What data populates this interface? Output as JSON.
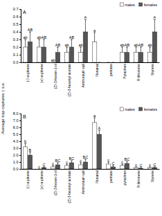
{
  "chart_data": [
    {
      "type": "bar",
      "title": "A",
      "y_label": "Average trap captures ± s.e.",
      "categories": [
        "(-)-α-pinene",
        "(+)-α-pinene",
        "(Z)-3-hexen-1-ol",
        "(Z)-3-hexenyl acetate",
        "Ammonium salt",
        "Nonanal",
        "pentane",
        "Pyrazines",
        "R-limonene",
        "Styrene"
      ],
      "series": [
        {
          "name": "males",
          "color": "#ffffff",
          "values": [
            0.2,
            0.2,
            0,
            0.13,
            0.13,
            0.27,
            0,
            0.13,
            0.13,
            0.13
          ],
          "errors": [
            0.1,
            0.1,
            0,
            0.07,
            0.07,
            0.12,
            0,
            0.07,
            0.07,
            0.07
          ],
          "letters": [
            "ab",
            "ab",
            "ab",
            "ab",
            "ab",
            "a",
            null,
            "ab",
            "ab",
            "ab"
          ]
        },
        {
          "name": "females",
          "color": "#555555",
          "values": [
            0.27,
            0.2,
            0.13,
            0.2,
            0.4,
            0,
            0,
            0.13,
            0.13,
            0.4
          ],
          "errors": [
            0.13,
            0.1,
            0.07,
            0.1,
            0.16,
            0,
            0,
            0.07,
            0.07,
            0.16
          ],
          "letters": [
            "AB",
            "AB",
            "AB",
            "AB",
            "A",
            null,
            null,
            "AB",
            "AB",
            "A"
          ]
        }
      ],
      "ylim": [
        0,
        0.7
      ],
      "yticks": [
        {
          "value": 0,
          "label": "0.0"
        },
        0.1,
        0.2,
        0.3,
        0.4,
        0.5,
        0.6,
        0.7
      ],
      "legend": "top-right",
      "grid": false
    },
    {
      "type": "bar",
      "title": "B",
      "categories": [
        "(-)-α-pinene",
        "(+)-α-pinene",
        "(Z)-3-hexen-1-ol",
        "(Z)-3-hexenyl acetate",
        "Ammonium salt",
        "Nonanal",
        "pentane",
        "pyrazines",
        "R-limonene",
        "Styrene"
      ],
      "series": [
        {
          "name": "males",
          "color": "#ffffff",
          "values": [
            3.2,
            0,
            0.3,
            0.5,
            0.6,
            6.7,
            0.7,
            0.5,
            0.2,
            0.2
          ],
          "errors": [
            0.5,
            0,
            0.2,
            0.2,
            0.3,
            0.7,
            0.3,
            0.2,
            0.1,
            0.1
          ],
          "letters": [
            "b",
            "c",
            "c",
            "c",
            "c",
            "a",
            "c",
            "c",
            "c",
            "c"
          ]
        },
        {
          "name": "females",
          "color": "#555555",
          "values": [
            2.0,
            0.2,
            0.6,
            0.9,
            1.0,
            5.0,
            0.3,
            0.8,
            0.1,
            0.2
          ],
          "errors": [
            0.4,
            0.1,
            0.3,
            0.3,
            0.4,
            0.6,
            0.2,
            0.3,
            0.1,
            0.1
          ],
          "letters": [
            "B",
            "C",
            "BC",
            "BC",
            "BC",
            "A",
            "C",
            "BC",
            "C",
            "C"
          ]
        }
      ],
      "ylim": [
        0,
        8
      ],
      "yticks": [
        {
          "value": 0,
          "label": "0.0"
        },
        {
          "value": 1,
          "label": "1.0"
        },
        {
          "value": 2,
          "label": "2.0"
        },
        {
          "value": 3,
          "label": "3.0"
        },
        {
          "value": 4,
          "label": "4.0"
        },
        {
          "value": 5,
          "label": "5.0"
        },
        {
          "value": 6,
          "label": "6.0"
        },
        {
          "value": 7,
          "label": "7.0"
        },
        {
          "value": 8,
          "label": "8.0"
        }
      ],
      "legend": "top-right",
      "grid": false
    }
  ]
}
